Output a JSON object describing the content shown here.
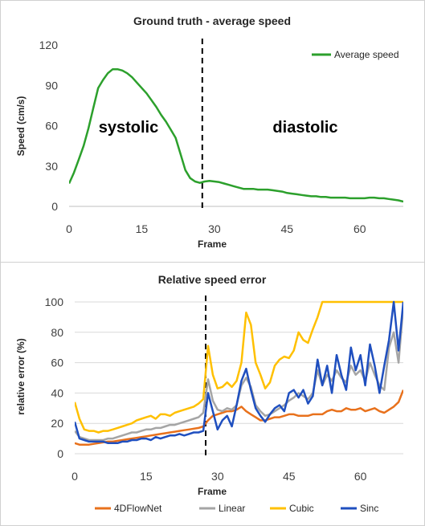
{
  "chart_data": [
    {
      "type": "line",
      "title": "Ground truth - average speed",
      "xlabel": "Frame",
      "ylabel": "Speed (cm/s)",
      "xlim": [
        0,
        69
      ],
      "ylim": [
        0,
        120
      ],
      "xticks": [
        0,
        15,
        30,
        45,
        60
      ],
      "yticks": [
        0,
        30,
        60,
        90,
        120
      ],
      "grid": false,
      "legend_position": "top-right",
      "annotations": {
        "divider_frame": 27.5,
        "left_label": "systolic",
        "right_label": "diastolic"
      },
      "series": [
        {
          "name": "Average speed",
          "color": "#2ca02c",
          "x": [
            0,
            1,
            2,
            3,
            4,
            5,
            6,
            7,
            8,
            9,
            10,
            11,
            12,
            13,
            14,
            15,
            16,
            17,
            18,
            19,
            20,
            21,
            22,
            23,
            24,
            25,
            26,
            27,
            28,
            29,
            30,
            31,
            32,
            33,
            34,
            35,
            36,
            37,
            38,
            39,
            40,
            41,
            42,
            43,
            44,
            45,
            46,
            47,
            48,
            49,
            50,
            51,
            52,
            53,
            54,
            55,
            56,
            57,
            58,
            59,
            60,
            61,
            62,
            63,
            64,
            65,
            66,
            67,
            68,
            69
          ],
          "values": [
            17,
            25,
            35,
            45,
            58,
            73,
            88,
            94,
            99,
            102,
            102,
            101,
            99,
            96,
            92,
            88,
            84,
            79,
            74,
            68,
            63,
            57,
            51,
            39,
            27,
            21,
            18.5,
            17.5,
            18.5,
            19,
            18.5,
            18,
            17,
            16,
            15,
            14,
            13,
            13,
            13,
            12.5,
            12.5,
            12.5,
            12,
            11.5,
            11,
            10,
            9.5,
            9,
            8.5,
            8,
            7.5,
            7.5,
            7,
            7,
            6.5,
            6.5,
            6.5,
            6.5,
            6,
            6,
            6,
            6,
            6.5,
            6.5,
            6,
            6,
            5.5,
            5,
            4.5,
            3.5
          ]
        }
      ]
    },
    {
      "type": "line",
      "title": "Relative speed error",
      "xlabel": "Frame",
      "ylabel": "relative error (%)",
      "xlim": [
        0,
        69
      ],
      "ylim": [
        0,
        100
      ],
      "xticks": [
        0,
        15,
        30,
        45,
        60
      ],
      "yticks": [
        0,
        20,
        40,
        60,
        80,
        100
      ],
      "grid": true,
      "legend_position": "bottom",
      "annotations": {
        "divider_frame": 27.5
      },
      "series": [
        {
          "name": "4DFlowNet",
          "color": "#e8711c",
          "x": [
            0,
            1,
            2,
            3,
            4,
            5,
            6,
            7,
            8,
            9,
            10,
            11,
            12,
            13,
            14,
            15,
            16,
            17,
            18,
            19,
            20,
            21,
            22,
            23,
            24,
            25,
            26,
            27,
            28,
            29,
            30,
            31,
            32,
            33,
            34,
            35,
            36,
            37,
            38,
            39,
            40,
            41,
            42,
            43,
            44,
            45,
            46,
            47,
            48,
            49,
            50,
            51,
            52,
            53,
            54,
            55,
            56,
            57,
            58,
            59,
            60,
            61,
            62,
            63,
            64,
            65,
            66,
            67,
            68,
            69
          ],
          "values": [
            7,
            6,
            6,
            6,
            6.5,
            7,
            7.5,
            8,
            8,
            8.5,
            9,
            9.5,
            10,
            10.5,
            11,
            11.5,
            12,
            12.5,
            13,
            13.5,
            14,
            14.5,
            15,
            15.5,
            16,
            16.5,
            17,
            18,
            22,
            25,
            26,
            27,
            28,
            28,
            29,
            31,
            28,
            26,
            24,
            22,
            22,
            23,
            24,
            24,
            25,
            26,
            26,
            25,
            25,
            25,
            26,
            26,
            26,
            28,
            29,
            28,
            28,
            30,
            29,
            29,
            30,
            28,
            29,
            30,
            28,
            27,
            29,
            31,
            34,
            42
          ]
        },
        {
          "name": "Linear",
          "color": "#a5a5a5",
          "x": [
            0,
            1,
            2,
            3,
            4,
            5,
            6,
            7,
            8,
            9,
            10,
            11,
            12,
            13,
            14,
            15,
            16,
            17,
            18,
            19,
            20,
            21,
            22,
            23,
            24,
            25,
            26,
            27,
            28,
            29,
            30,
            31,
            32,
            33,
            34,
            35,
            36,
            37,
            38,
            39,
            40,
            41,
            42,
            43,
            44,
            45,
            46,
            47,
            48,
            49,
            50,
            51,
            52,
            53,
            54,
            55,
            56,
            57,
            58,
            59,
            60,
            61,
            62,
            63,
            64,
            65,
            66,
            67,
            68,
            69
          ],
          "values": [
            15,
            11,
            10,
            9,
            9,
            9,
            9,
            10,
            10,
            11,
            12,
            13,
            14,
            14,
            15,
            16,
            16,
            17,
            17,
            18,
            19,
            19,
            20,
            21,
            22,
            23,
            24,
            27,
            49,
            35,
            29,
            28,
            30,
            29,
            32,
            45,
            50,
            44,
            32,
            28,
            25,
            26,
            28,
            30,
            32,
            35,
            37,
            40,
            38,
            36,
            40,
            55,
            45,
            52,
            48,
            55,
            50,
            47,
            58,
            52,
            55,
            48,
            60,
            52,
            45,
            42,
            70,
            80,
            60,
            97
          ]
        },
        {
          "name": "Cubic",
          "color": "#ffc000",
          "x": [
            0,
            1,
            2,
            3,
            4,
            5,
            6,
            7,
            8,
            9,
            10,
            11,
            12,
            13,
            14,
            15,
            16,
            17,
            18,
            19,
            20,
            21,
            22,
            23,
            24,
            25,
            26,
            27,
            28,
            29,
            30,
            31,
            32,
            33,
            34,
            35,
            36,
            37,
            38,
            39,
            40,
            41,
            42,
            43,
            44,
            45,
            46,
            47,
            48,
            49,
            50,
            51,
            52,
            53,
            54,
            55,
            56,
            57,
            58,
            59,
            60,
            61,
            62,
            63,
            64,
            65,
            66,
            67,
            68,
            69
          ],
          "values": [
            34,
            23,
            16,
            15,
            15,
            14,
            15,
            15,
            16,
            17,
            18,
            19,
            20,
            22,
            23,
            24,
            25,
            23,
            26,
            26,
            25,
            27,
            28,
            29,
            30,
            31,
            33,
            36,
            71,
            52,
            43,
            44,
            47,
            44,
            48,
            60,
            93,
            85,
            60,
            52,
            43,
            47,
            58,
            62,
            64,
            63,
            68,
            80,
            75,
            73,
            82,
            90,
            100,
            100,
            100,
            100,
            100,
            100,
            100,
            100,
            100,
            100,
            100,
            100,
            100,
            100,
            100,
            100,
            100,
            100
          ]
        },
        {
          "name": "Sinc",
          "color": "#1f4fbf",
          "x": [
            0,
            1,
            2,
            3,
            4,
            5,
            6,
            7,
            8,
            9,
            10,
            11,
            12,
            13,
            14,
            15,
            16,
            17,
            18,
            19,
            20,
            21,
            22,
            23,
            24,
            25,
            26,
            27,
            28,
            29,
            30,
            31,
            32,
            33,
            34,
            35,
            36,
            37,
            38,
            39,
            40,
            41,
            42,
            43,
            44,
            45,
            46,
            47,
            48,
            49,
            50,
            51,
            52,
            53,
            54,
            55,
            56,
            57,
            58,
            59,
            60,
            61,
            62,
            63,
            64,
            65,
            66,
            67,
            68,
            69
          ],
          "values": [
            21,
            10,
            9,
            8,
            8,
            8,
            8,
            7,
            7,
            7,
            8,
            8,
            9,
            9,
            10,
            10,
            9,
            11,
            10,
            11,
            12,
            12,
            13,
            12,
            13,
            14,
            14,
            15,
            40,
            28,
            16,
            22,
            25,
            18,
            32,
            48,
            56,
            42,
            30,
            25,
            21,
            26,
            30,
            32,
            28,
            40,
            42,
            37,
            42,
            33,
            38,
            62,
            45,
            58,
            40,
            65,
            52,
            42,
            70,
            55,
            65,
            45,
            72,
            58,
            40,
            58,
            75,
            100,
            68,
            100
          ]
        }
      ]
    }
  ]
}
